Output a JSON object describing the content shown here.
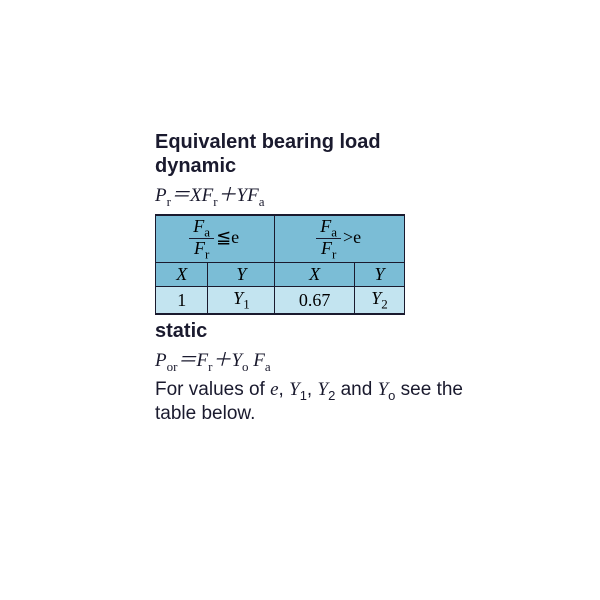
{
  "title": "Equivalent bearing load",
  "dynamic_label": "dynamic",
  "dynamic_formula_html": "<i>P</i><span class='sub'>r</span>＝<i>X</i><i>F</i><span class='sub'>r</span>＋<i>Y</i><i>F</i><span class='sub'>a</span>",
  "static_label": "static",
  "static_formula_html": "<i>P</i><span class='sub'>or</span>＝<i>F</i><span class='sub'>r</span>＋<i>Y</i><span class='sub'>o</span> <i>F</i><span class='sub'>a</span>",
  "note_html": "For values of <span class='ital'>e</span>, <span class='ital'>Y</span><span class='sub'>1</span>, <span class='ital'>Y</span><span class='sub'>2</span> and <span class='ital'>Y</span><span class='sub'>o</span> see the table below.",
  "table": {
    "colors": {
      "header_bg": "#7bbdd6",
      "light_bg": "#c3e4f0",
      "border": "#1a1a2e"
    },
    "frac_num": "F",
    "frac_num_sub": "a",
    "frac_den": "F",
    "frac_den_sub": "r",
    "cond_le": "≦e",
    "cond_gt": ">e",
    "col_X": "X",
    "col_Y": "Y",
    "val_X1": "1",
    "val_Y1_html": "<i>Y</i><span class='sub'>1</span>",
    "val_X2": "0.67",
    "val_Y2_html": "<i>Y</i><span class='sub'>2</span>"
  }
}
